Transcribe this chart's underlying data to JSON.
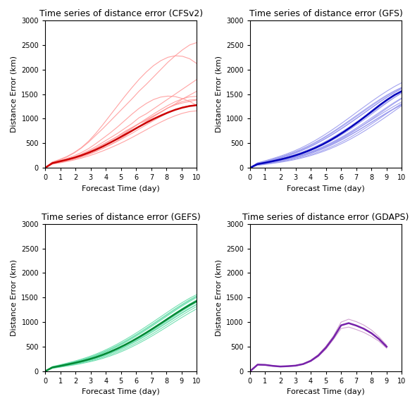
{
  "titles": [
    "Time series of distance error (CFSv2)",
    "Time series of distance error (GFS)",
    "Time series of distance error (GEFS)",
    "Time series of distance error (GDAPS)"
  ],
  "xlabel": "Forecast Time (day)",
  "ylabel": "Distance Error (km)",
  "ylim": [
    0,
    3000
  ],
  "xlim": [
    0,
    10
  ],
  "xticks": [
    0,
    1,
    2,
    3,
    4,
    5,
    6,
    7,
    8,
    9,
    10
  ],
  "yticks": [
    0,
    500,
    1000,
    1500,
    2000,
    2500,
    3000
  ],
  "colors": {
    "CFSv2_thin": "#FF9999",
    "CFSv2_thick": "#CC0000",
    "GFS_thin": "#9999EE",
    "GFS_thick": "#0000BB",
    "GEFS_thin": "#66DDAA",
    "GEFS_thick": "#008833",
    "GDAPS_thin": "#CC99CC",
    "GDAPS_thick": "#7722AA"
  },
  "thin_lw": 0.8,
  "thick_lw": 1.8,
  "background_color": "#FFFFFF",
  "title_fontsize": 9,
  "label_fontsize": 8,
  "tick_fontsize": 7,
  "cfsv2_individual": [
    [
      0,
      100,
      150,
      180,
      220,
      280,
      350,
      430,
      520,
      610,
      700,
      800,
      900,
      1020,
      1100,
      1200,
      1300,
      1400,
      1500,
      1600,
      1700,
      1800
    ],
    [
      0,
      90,
      120,
      150,
      200,
      260,
      330,
      400,
      480,
      560,
      640,
      740,
      820,
      900,
      960,
      1050,
      1130,
      1220,
      1300,
      1400,
      1480,
      1560
    ],
    [
      0,
      110,
      160,
      220,
      300,
      400,
      520,
      660,
      800,
      950,
      1100,
      1250,
      1400,
      1560,
      1700,
      1850,
      2000,
      2150,
      2280,
      2400,
      2500,
      2550
    ],
    [
      0,
      95,
      130,
      165,
      200,
      245,
      300,
      360,
      430,
      510,
      600,
      700,
      800,
      900,
      980,
      1060,
      1140,
      1220,
      1280,
      1320,
      1350,
      1380
    ],
    [
      0,
      80,
      110,
      140,
      175,
      220,
      270,
      330,
      400,
      470,
      550,
      640,
      740,
      840,
      940,
      1040,
      1130,
      1220,
      1290,
      1350,
      1380,
      1390
    ],
    [
      0,
      105,
      145,
      190,
      245,
      310,
      390,
      490,
      600,
      710,
      830,
      960,
      1090,
      1210,
      1310,
      1390,
      1440,
      1460,
      1450,
      1410,
      1350,
      1270
    ],
    [
      0,
      120,
      170,
      230,
      310,
      410,
      540,
      700,
      880,
      1070,
      1260,
      1450,
      1630,
      1800,
      1950,
      2080,
      2180,
      2250,
      2280,
      2270,
      2220,
      2120
    ],
    [
      0,
      85,
      115,
      148,
      183,
      225,
      275,
      333,
      395,
      465,
      540,
      620,
      700,
      790,
      875,
      960,
      1040,
      1120,
      1185,
      1235,
      1265,
      1275
    ],
    [
      0,
      92,
      127,
      167,
      213,
      267,
      328,
      397,
      470,
      550,
      633,
      720,
      810,
      905,
      1000,
      1095,
      1185,
      1270,
      1345,
      1405,
      1445,
      1455
    ],
    [
      0,
      75,
      100,
      128,
      160,
      197,
      240,
      290,
      345,
      405,
      470,
      540,
      615,
      695,
      775,
      855,
      930,
      1000,
      1060,
      1110,
      1145,
      1160
    ]
  ],
  "cfsv2_mean": [
    0,
    95,
    130,
    165,
    205,
    252,
    306,
    368,
    437,
    512,
    590,
    672,
    754,
    838,
    918,
    994,
    1063,
    1126,
    1181,
    1225,
    1257,
    1276
  ],
  "gfs_individual": [
    [
      0,
      70,
      95,
      120,
      148,
      178,
      213,
      253,
      300,
      353,
      413,
      480,
      555,
      636,
      722,
      810,
      900,
      992,
      1083,
      1173,
      1260,
      1343
    ],
    [
      0,
      65,
      88,
      112,
      139,
      168,
      202,
      241,
      286,
      337,
      394,
      458,
      528,
      604,
      684,
      768,
      856,
      946,
      1035,
      1122,
      1205,
      1282
    ],
    [
      0,
      80,
      110,
      143,
      178,
      216,
      260,
      310,
      368,
      432,
      503,
      582,
      668,
      760,
      857,
      959,
      1063,
      1168,
      1272,
      1373,
      1468,
      1555
    ],
    [
      0,
      60,
      82,
      105,
      130,
      158,
      190,
      228,
      272,
      322,
      379,
      443,
      514,
      592,
      675,
      762,
      853,
      945,
      1037,
      1127,
      1212,
      1290
    ],
    [
      0,
      75,
      103,
      133,
      165,
      201,
      243,
      291,
      346,
      408,
      478,
      555,
      640,
      732,
      829,
      929,
      1033,
      1138,
      1241,
      1341,
      1435,
      1520
    ],
    [
      0,
      85,
      118,
      154,
      193,
      236,
      285,
      342,
      406,
      477,
      555,
      640,
      731,
      827,
      927,
      1030,
      1135,
      1240,
      1343,
      1442,
      1534,
      1616
    ],
    [
      0,
      90,
      125,
      163,
      204,
      249,
      301,
      360,
      427,
      502,
      585,
      675,
      770,
      869,
      970,
      1073,
      1177,
      1279,
      1378,
      1472,
      1558,
      1633
    ],
    [
      0,
      55,
      75,
      96,
      119,
      145,
      175,
      210,
      250,
      296,
      349,
      409,
      476,
      551,
      632,
      720,
      813,
      910,
      1010,
      1112,
      1213,
      1310
    ],
    [
      0,
      100,
      140,
      183,
      229,
      279,
      336,
      401,
      474,
      555,
      643,
      737,
      837,
      941,
      1048,
      1157,
      1264,
      1370,
      1471,
      1567,
      1655,
      1733
    ],
    [
      0,
      72,
      98,
      126,
      157,
      191,
      230,
      276,
      329,
      389,
      456,
      531,
      613,
      702,
      798,
      899,
      1004,
      1112,
      1221,
      1329,
      1433,
      1531
    ],
    [
      0,
      63,
      86,
      110,
      137,
      167,
      201,
      241,
      287,
      340,
      400,
      467,
      542,
      624,
      712,
      806,
      905,
      1008,
      1113,
      1217,
      1318,
      1412
    ],
    [
      0,
      88,
      121,
      157,
      196,
      239,
      288,
      344,
      408,
      480,
      559,
      645,
      737,
      834,
      934,
      1037,
      1141,
      1245,
      1346,
      1442,
      1531,
      1610
    ],
    [
      0,
      50,
      68,
      88,
      109,
      133,
      161,
      194,
      232,
      276,
      326,
      382,
      446,
      516,
      593,
      676,
      765,
      859,
      957,
      1058,
      1161,
      1264
    ],
    [
      0,
      95,
      132,
      172,
      214,
      261,
      314,
      374,
      442,
      518,
      601,
      691,
      787,
      887,
      990,
      1094,
      1198,
      1299,
      1396,
      1487,
      1568,
      1638
    ],
    [
      0,
      67,
      92,
      118,
      147,
      179,
      216,
      258,
      307,
      362,
      425,
      495,
      572,
      655,
      744,
      838,
      936,
      1037,
      1138,
      1238,
      1334,
      1423
    ]
  ],
  "gfs_mean": [
    0,
    74,
    101,
    131,
    163,
    199,
    240,
    287,
    342,
    404,
    474,
    553,
    640,
    734,
    834,
    940,
    1052,
    1168,
    1282,
    1388,
    1483,
    1561
  ],
  "gefs_individual": [
    [
      0,
      80,
      108,
      138,
      170,
      205,
      245,
      291,
      344,
      403,
      469,
      542,
      621,
      706,
      796,
      890,
      987,
      1086,
      1184,
      1280,
      1371,
      1456
    ],
    [
      0,
      75,
      102,
      130,
      160,
      193,
      231,
      274,
      324,
      381,
      444,
      514,
      590,
      672,
      759,
      850,
      944,
      1040,
      1136,
      1231,
      1321,
      1404
    ],
    [
      0,
      90,
      123,
      157,
      193,
      233,
      279,
      331,
      390,
      456,
      529,
      608,
      693,
      783,
      877,
      974,
      1073,
      1173,
      1271,
      1366,
      1455,
      1535
    ],
    [
      0,
      70,
      95,
      121,
      149,
      180,
      215,
      256,
      304,
      358,
      419,
      486,
      560,
      640,
      725,
      814,
      905,
      999,
      1094,
      1187,
      1276,
      1359
    ],
    [
      0,
      85,
      116,
      148,
      182,
      219,
      262,
      311,
      367,
      430,
      500,
      577,
      660,
      748,
      841,
      937,
      1036,
      1136,
      1235,
      1331,
      1421,
      1503
    ],
    [
      0,
      65,
      88,
      112,
      138,
      167,
      200,
      238,
      283,
      334,
      392,
      457,
      528,
      605,
      688,
      775,
      866,
      960,
      1055,
      1148,
      1237,
      1320
    ],
    [
      0,
      95,
      130,
      166,
      204,
      246,
      294,
      348,
      410,
      479,
      555,
      637,
      724,
      816,
      912,
      1010,
      1110,
      1210,
      1308,
      1401,
      1487,
      1563
    ],
    [
      0,
      60,
      82,
      105,
      129,
      156,
      187,
      222,
      263,
      311,
      366,
      428,
      497,
      572,
      652,
      737,
      826,
      918,
      1011,
      1102,
      1190,
      1273
    ],
    [
      0,
      88,
      120,
      153,
      188,
      226,
      270,
      320,
      378,
      443,
      515,
      593,
      678,
      768,
      862,
      959,
      1058,
      1158,
      1257,
      1352,
      1441,
      1522
    ],
    [
      0,
      72,
      98,
      125,
      154,
      185,
      221,
      263,
      311,
      366,
      428,
      497,
      572,
      653,
      739,
      829,
      921,
      1015,
      1109,
      1200,
      1286,
      1366
    ]
  ],
  "gefs_mean": [
    0,
    78,
    106,
    136,
    167,
    201,
    240,
    285,
    337,
    396,
    462,
    534,
    612,
    696,
    785,
    878,
    973,
    1070,
    1167,
    1260,
    1349,
    1430
  ],
  "gdaps_individual_1": [
    0,
    130,
    125,
    105,
    95,
    100,
    110,
    140,
    200,
    300,
    450,
    650,
    870,
    900,
    850,
    790,
    710,
    610,
    470
  ],
  "gdaps_individual_2": [
    0,
    140,
    135,
    115,
    100,
    108,
    120,
    155,
    225,
    340,
    510,
    720,
    1000,
    1060,
    1010,
    940,
    840,
    700,
    530
  ],
  "gdaps_mean": [
    0,
    135,
    130,
    110,
    97,
    104,
    115,
    147,
    212,
    320,
    480,
    685,
    935,
    980,
    930,
    865,
    775,
    655,
    500
  ]
}
